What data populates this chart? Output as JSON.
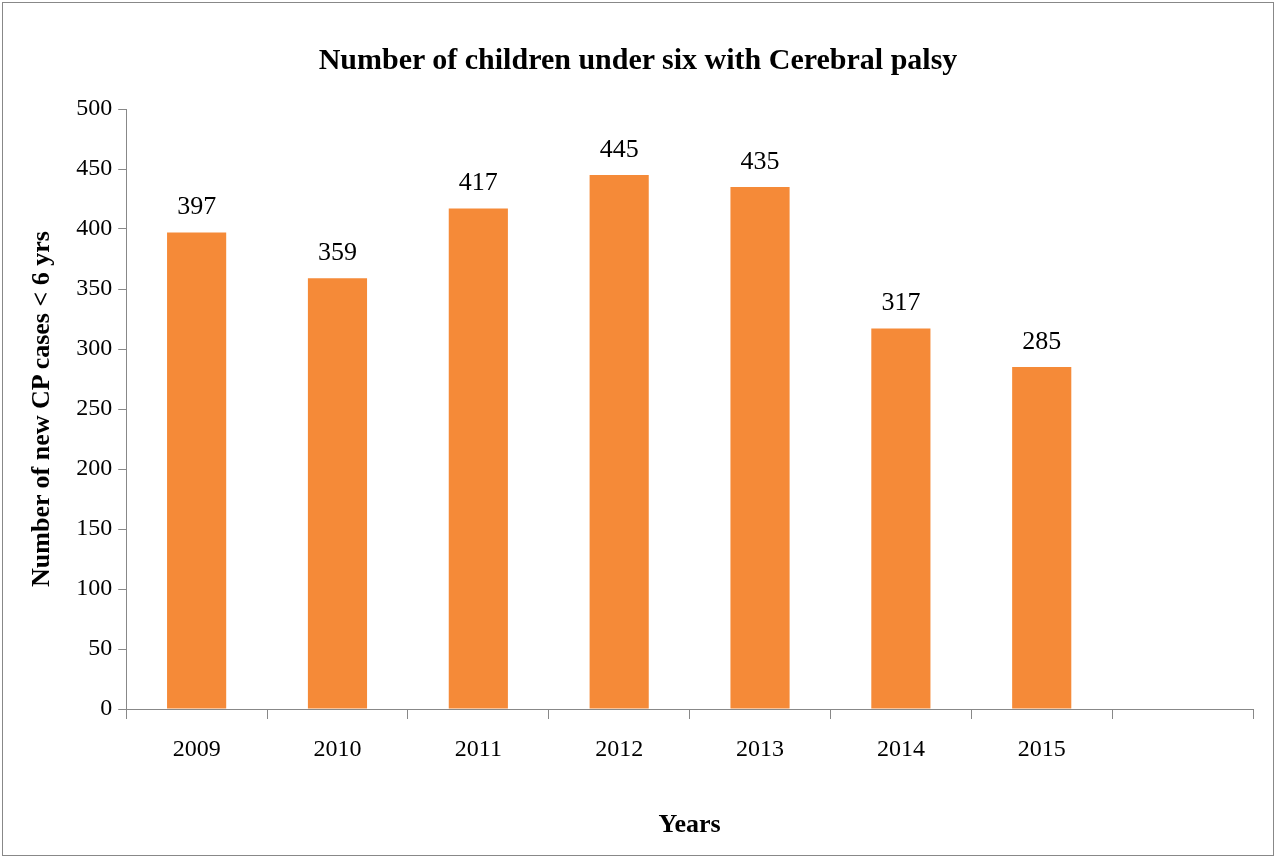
{
  "chart_data": {
    "type": "bar",
    "title": "Number of children under six with Cerebral palsy",
    "xlabel": "Years",
    "ylabel": "Number of new CP cases < 6 yrs",
    "categories": [
      "2009",
      "2010",
      "2011",
      "2012",
      "2013",
      "2014",
      "2015",
      null
    ],
    "values": [
      397,
      359,
      417,
      445,
      435,
      317,
      285,
      null
    ],
    "color": "#f58a38",
    "ylim": [
      0,
      500
    ],
    "yticks": [
      0,
      50,
      100,
      150,
      200,
      250,
      300,
      350,
      400,
      450,
      500
    ],
    "grid": false,
    "legend": false,
    "data_labels": true
  }
}
